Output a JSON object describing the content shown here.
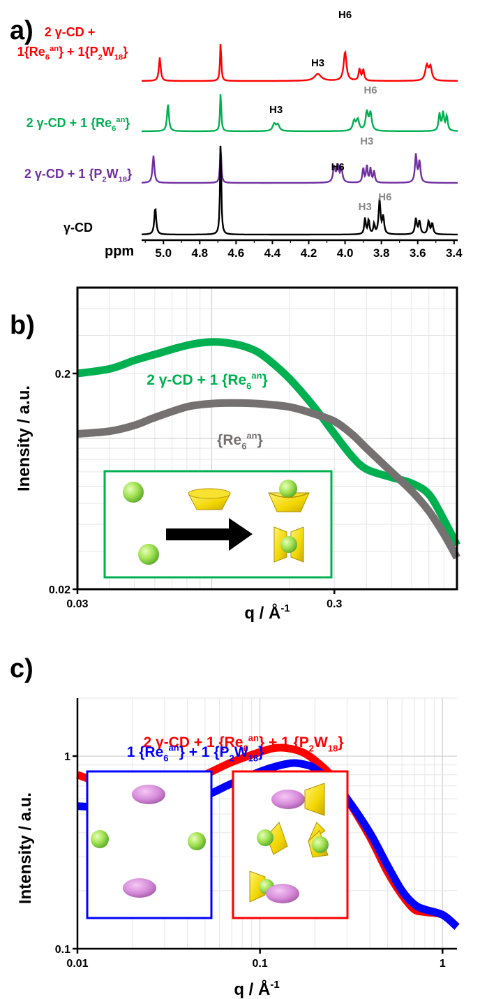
{
  "panels": {
    "a": {
      "letter": "a)"
    },
    "b": {
      "letter": "b)"
    },
    "c": {
      "letter": "c)"
    }
  },
  "chart_data": [
    {
      "type": "line",
      "panel": "a",
      "xlabel": "ppm",
      "x_reversed": true,
      "xlim": [
        5.12,
        3.38
      ],
      "xticks": [
        "5.0",
        "4.8",
        "4.6",
        "4.4",
        "4.2",
        "4.0",
        "3.8",
        "3.6",
        "3.4"
      ],
      "xtick_values": [
        5.0,
        4.8,
        4.6,
        4.4,
        4.2,
        4.0,
        3.8,
        3.6,
        3.4
      ],
      "series": [
        {
          "name": "2 γ-CD + 1{Re6an} + 1{P2W18}",
          "label_lines": [
            "2 γ-CD +",
            "1{Re",
            "6",
            "an",
            "} + 1{P",
            "2",
            "W",
            "18",
            "}"
          ],
          "color": "#ff0000",
          "peaks": [
            [
              5.02,
              60,
              0.006
            ],
            [
              4.685,
              100,
              0.004
            ],
            [
              4.15,
              18,
              0.022
            ],
            [
              4.0,
              75,
              0.009
            ],
            [
              3.92,
              30,
              0.006
            ],
            [
              3.9,
              28,
              0.006
            ],
            [
              3.55,
              38,
              0.01
            ],
            [
              3.53,
              34,
              0.009
            ]
          ],
          "annotations": [
            {
              "text": "H3",
              "x": 4.15,
              "color": "#000000"
            },
            {
              "text": "H6",
              "x": 4.0,
              "color": "#000000"
            }
          ]
        },
        {
          "name": "2 γ-CD + 1 {Re6an}",
          "label_lines": [
            "2 γ-CD + 1 {Re",
            "6",
            "an",
            "}"
          ],
          "color": "#00b050",
          "peaks": [
            [
              4.975,
              70,
              0.006
            ],
            [
              4.685,
              100,
              0.004
            ],
            [
              4.39,
              18,
              0.01
            ],
            [
              4.37,
              16,
              0.01
            ],
            [
              3.95,
              25,
              0.009
            ],
            [
              3.93,
              28,
              0.009
            ],
            [
              3.88,
              48,
              0.008
            ],
            [
              3.86,
              45,
              0.008
            ],
            [
              3.48,
              44,
              0.006
            ],
            [
              3.46,
              46,
              0.006
            ],
            [
              3.44,
              38,
              0.006
            ]
          ],
          "annotations": [
            {
              "text": "H3",
              "x": 4.38,
              "color": "#000000"
            },
            {
              "text": "H6",
              "x": 3.86,
              "color": "#888888"
            }
          ]
        },
        {
          "name": "2 γ-CD + 1 {P2W18}",
          "label_lines": [
            "2 γ-CD + 1 {P",
            "2",
            "W",
            "18",
            "}"
          ],
          "color": "#7030a0",
          "peaks": [
            [
              5.055,
              70,
              0.006
            ],
            [
              4.685,
              100,
              0.004
            ],
            [
              4.06,
              40,
              0.007
            ],
            [
              4.04,
              42,
              0.007
            ],
            [
              4.02,
              34,
              0.007
            ],
            [
              3.9,
              38,
              0.005
            ],
            [
              3.88,
              42,
              0.005
            ],
            [
              3.86,
              36,
              0.005
            ],
            [
              3.84,
              30,
              0.005
            ],
            [
              3.61,
              72,
              0.006
            ],
            [
              3.59,
              55,
              0.006
            ]
          ],
          "annotations": [
            {
              "text": "H6",
              "x": 4.04,
              "color": "#000000"
            },
            {
              "text": "H3",
              "x": 3.88,
              "color": "#888888"
            }
          ]
        },
        {
          "name": "γ-CD",
          "label_lines": [
            "γ-CD"
          ],
          "color": "#000000",
          "peaks": [
            [
              5.045,
              70,
              0.006
            ],
            [
              4.685,
              240,
              0.004
            ],
            [
              3.89,
              42,
              0.005
            ],
            [
              3.87,
              38,
              0.005
            ],
            [
              3.84,
              25,
              0.005
            ],
            [
              3.81,
              88,
              0.006
            ],
            [
              3.79,
              44,
              0.006
            ],
            [
              3.61,
              40,
              0.006
            ],
            [
              3.59,
              34,
              0.006
            ],
            [
              3.54,
              34,
              0.006
            ],
            [
              3.52,
              28,
              0.006
            ]
          ],
          "annotations": [
            {
              "text": "H3",
              "x": 3.89,
              "color": "#888888"
            },
            {
              "text": "H6",
              "x": 3.78,
              "color": "#888888"
            }
          ]
        }
      ]
    },
    {
      "type": "line",
      "panel": "b",
      "xscale": "log",
      "yscale": "log",
      "xlim": [
        0.03,
        0.9
      ],
      "ylim": [
        0.02,
        0.5
      ],
      "xticks": [
        "0.03",
        "0.3"
      ],
      "xtick_values": [
        0.03,
        0.3
      ],
      "yticks": [
        "0.2",
        "0.02"
      ],
      "ytick_values": [
        0.2,
        0.02
      ],
      "xlabel": "q / Å",
      "xlabel_sup": "-1",
      "ylabel": "Inensity / a.u.",
      "grid": true,
      "series": [
        {
          "name": "2 γ-CD + 1 {Re6an}",
          "label_lines": [
            "2 γ-CD + 1 {Re",
            "6",
            "an",
            "}"
          ],
          "color": "#00b050",
          "x": [
            0.03,
            0.04,
            0.05,
            0.06,
            0.08,
            0.1,
            0.12,
            0.14,
            0.16,
            0.2,
            0.25,
            0.3,
            0.35,
            0.4,
            0.5,
            0.6,
            0.7,
            0.8,
            0.9
          ],
          "y": [
            0.2,
            0.21,
            0.23,
            0.245,
            0.27,
            0.28,
            0.275,
            0.262,
            0.24,
            0.19,
            0.14,
            0.105,
            0.083,
            0.072,
            0.066,
            0.062,
            0.055,
            0.042,
            0.032
          ]
        },
        {
          "name": "{Re6an}",
          "label_lines": [
            "{Re",
            "6",
            "an",
            "}"
          ],
          "color": "#767171",
          "x": [
            0.03,
            0.04,
            0.05,
            0.06,
            0.08,
            0.1,
            0.12,
            0.15,
            0.2,
            0.25,
            0.3,
            0.35,
            0.4,
            0.5,
            0.6,
            0.7,
            0.8,
            0.9
          ],
          "y": [
            0.105,
            0.108,
            0.115,
            0.125,
            0.14,
            0.145,
            0.146,
            0.145,
            0.14,
            0.13,
            0.12,
            0.105,
            0.09,
            0.07,
            0.057,
            0.046,
            0.036,
            0.028
          ]
        }
      ]
    },
    {
      "type": "line",
      "panel": "c",
      "xscale": "log",
      "yscale": "log",
      "xlim": [
        0.01,
        1.2
      ],
      "ylim": [
        0.1,
        2.0
      ],
      "xticks": [
        "0.01",
        "0.1",
        "1"
      ],
      "xtick_values": [
        0.01,
        0.1,
        1
      ],
      "yticks": [
        "1",
        "0.1"
      ],
      "ytick_values": [
        1,
        0.1
      ],
      "xlabel": "q / Å",
      "xlabel_sup": "-1",
      "ylabel": "Intensity / a.u.",
      "grid": true,
      "series": [
        {
          "name": "2 γ-CD + 1 {Re6an} + 1 {P2W18}",
          "label_lines": [
            "2 γ-CD + 1 {Re",
            "6",
            "an",
            "} + 1 {P",
            "2",
            "W",
            "18",
            "}"
          ],
          "color": "#ff0000",
          "x": [
            0.01,
            0.015,
            0.02,
            0.03,
            0.04,
            0.05,
            0.07,
            0.1,
            0.12,
            0.14,
            0.17,
            0.2,
            0.25,
            0.3,
            0.4,
            0.5,
            0.6,
            0.7,
            0.8,
            1.0,
            1.2
          ],
          "y": [
            0.8,
            0.7,
            0.67,
            0.68,
            0.73,
            0.8,
            0.93,
            1.05,
            1.1,
            1.1,
            1.05,
            0.95,
            0.78,
            0.6,
            0.38,
            0.25,
            0.19,
            0.16,
            0.155,
            0.15,
            0.13
          ]
        },
        {
          "name": "1 {Re6an} + 1 {P2W18}",
          "label_lines": [
            "1 {Re",
            "6",
            "an",
            "} + 1 {P",
            "2",
            "W",
            "18",
            "}"
          ],
          "color": "#0000ff",
          "x": [
            0.01,
            0.015,
            0.02,
            0.03,
            0.04,
            0.05,
            0.07,
            0.1,
            0.12,
            0.15,
            0.18,
            0.2,
            0.25,
            0.3,
            0.4,
            0.5,
            0.6,
            0.7,
            0.8,
            1.0,
            1.2
          ],
          "y": [
            0.55,
            0.54,
            0.54,
            0.55,
            0.58,
            0.62,
            0.72,
            0.83,
            0.88,
            0.92,
            0.9,
            0.86,
            0.73,
            0.6,
            0.4,
            0.27,
            0.2,
            0.17,
            0.16,
            0.15,
            0.13
          ]
        }
      ]
    }
  ],
  "insets": {
    "b": {
      "border_color": "#00b050",
      "items": [
        "green-sphere",
        "yellow-cone",
        "arrow",
        "cone-with-sphere",
        "two-cones-with-sphere"
      ]
    },
    "c_left": {
      "border_color": "#0000ff",
      "items": [
        "pink-ellipsoid",
        "green-sphere"
      ]
    },
    "c_right": {
      "border_color": "#ff0000",
      "items": [
        "pink-ellipsoid",
        "cone-with-sphere"
      ]
    }
  }
}
